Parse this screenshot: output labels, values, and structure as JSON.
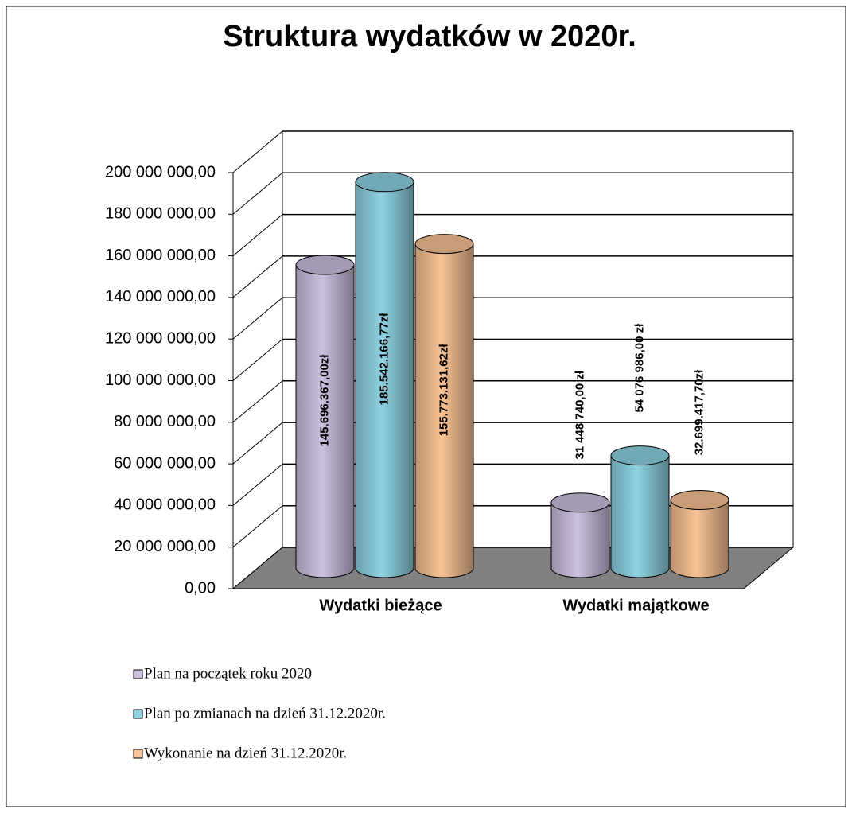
{
  "chart_data": {
    "type": "bar3d-cylinder",
    "title": "Struktura wydatków w 2020r.",
    "categories": [
      "Wydatki bieżące",
      "Wydatki  majątkowe"
    ],
    "series": [
      {
        "name": "Plan na początek roku 2020",
        "color": "#ccc0e0",
        "values": [
          145696367.0,
          31448740.0
        ],
        "value_labels": [
          "145.696.367,00zł",
          "31 448 740,00 zł"
        ]
      },
      {
        "name": "Plan po zmianach na dzień 31.12.2020r.",
        "color": "#8fd3e3",
        "values": [
          185542166.77,
          54076986.0
        ],
        "value_labels": [
          "185.542.166,77zł",
          "54 076 986,00 zł"
        ]
      },
      {
        "name": "Wykonanie na dzień 31.12.2020r.",
        "color": "#f9c394",
        "values": [
          155773131.62,
          32699417.7
        ],
        "value_labels": [
          "155.773.131,62zł",
          "32.699.417,70zł"
        ]
      }
    ],
    "ylim": [
      0,
      200000000
    ],
    "yticks": [
      {
        "value": 0,
        "label": "0,00"
      },
      {
        "value": 20000000,
        "label": "20 000 000,00"
      },
      {
        "value": 40000000,
        "label": "40 000 000,00"
      },
      {
        "value": 60000000,
        "label": "60 000 000,00"
      },
      {
        "value": 80000000,
        "label": "80 000 000,00"
      },
      {
        "value": 100000000,
        "label": "100 000 000,00"
      },
      {
        "value": 120000000,
        "label": "120 000 000,00"
      },
      {
        "value": 140000000,
        "label": "140 000 000,00"
      },
      {
        "value": 160000000,
        "label": "160 000 000,00"
      },
      {
        "value": 180000000,
        "label": "180 000 000,00"
      },
      {
        "value": 200000000,
        "label": "200 000 000,00"
      }
    ],
    "grid": true,
    "legend": "bottom-left"
  }
}
